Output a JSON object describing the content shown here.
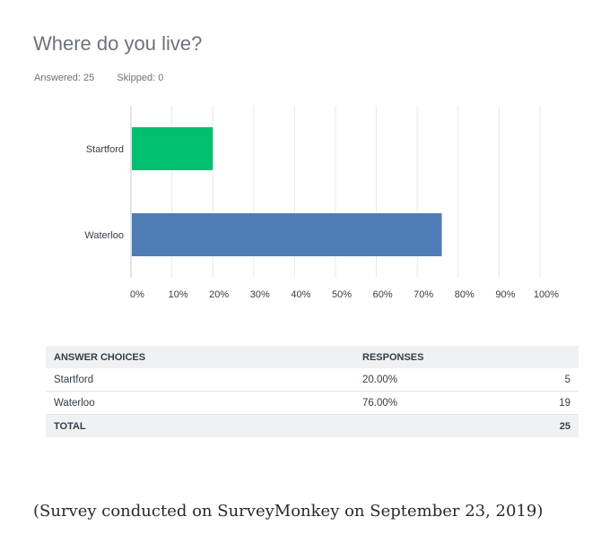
{
  "question": {
    "title": "Where do you live?",
    "answered_label": "Answered: 25",
    "skipped_label": "Skipped: 0"
  },
  "colors": {
    "series": [
      "#00bf6f",
      "#507cb6"
    ],
    "grid": "#e8e9ea",
    "axis": "#c5c9cd"
  },
  "chart_data": {
    "type": "bar",
    "orientation": "horizontal",
    "categories": [
      "Startford",
      "Waterloo"
    ],
    "values": [
      20,
      76
    ],
    "xlim": [
      0,
      100
    ],
    "xticks": [
      "0%",
      "10%",
      "20%",
      "30%",
      "40%",
      "50%",
      "60%",
      "70%",
      "80%",
      "90%",
      "100%"
    ],
    "grid": true
  },
  "table": {
    "headers": [
      "ANSWER CHOICES",
      "RESPONSES",
      ""
    ],
    "rows": [
      {
        "choice": "Startford",
        "percent": "20.00%",
        "count": "5"
      },
      {
        "choice": "Waterloo",
        "percent": "76.00%",
        "count": "19"
      }
    ],
    "total_label": "TOTAL",
    "total_count": "25"
  },
  "caption": "(Survey conducted on SurveyMonkey on September 23, 2019)"
}
